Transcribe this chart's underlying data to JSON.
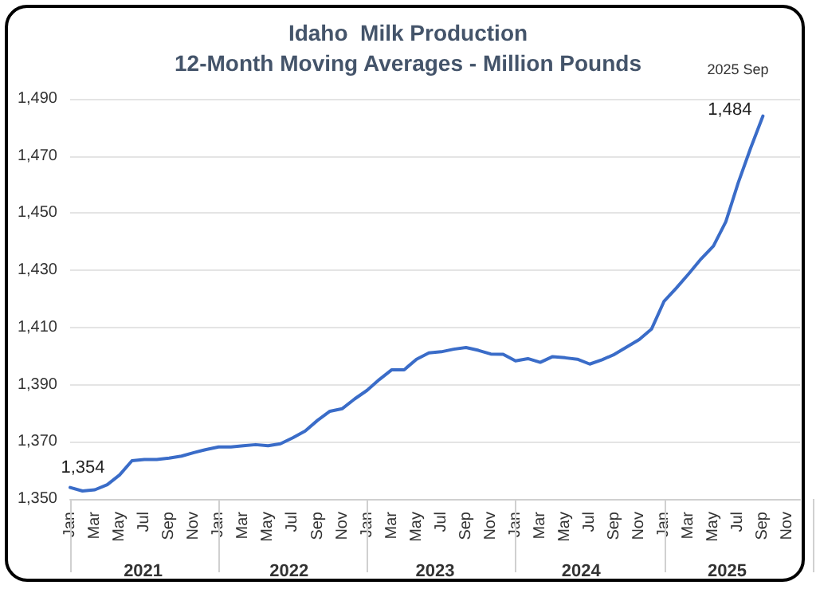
{
  "chart_data": {
    "type": "line",
    "title": "Idaho  Milk Production\n12-Month Moving Averages - Million Pounds",
    "categories": [
      "Jan",
      null,
      "Mar",
      null,
      "May",
      null,
      "Jul",
      null,
      "Sep",
      null,
      "Nov",
      null,
      "Jan",
      null,
      "Mar",
      null,
      "May",
      null,
      "Jul",
      null,
      "Sep",
      null,
      "Nov",
      null,
      "Jan",
      null,
      "Mar",
      null,
      "May",
      null,
      "Jul",
      null,
      "Sep",
      null,
      "Nov",
      null,
      "Jan",
      null,
      "Mar",
      null,
      "May",
      null,
      "Jul",
      null,
      "Sep",
      null,
      "Nov",
      null,
      "Jan",
      null,
      "Mar",
      null,
      "May",
      null,
      "Jul",
      null,
      "Sep",
      null,
      "Nov",
      null
    ],
    "series": [
      {
        "color": "#3a6cc8",
        "values": [
          1354,
          1352.8,
          1353.2,
          1355,
          1358.4,
          1363.4,
          1363.8,
          1363.8,
          1364.3,
          1365,
          1366.2,
          1367.3,
          1368.2,
          1368.2,
          1368.6,
          1369,
          1368.6,
          1369.3,
          1371.4,
          1373.8,
          1377.5,
          1380.7,
          1381.6,
          1385,
          1388,
          1391.8,
          1395.2,
          1395.2,
          1398.9,
          1401.1,
          1401.5,
          1402.4,
          1403,
          1402,
          1400.7,
          1400.6,
          1398.3,
          1399.1,
          1397.8,
          1399.8,
          1399.4,
          1398.9,
          1397.2,
          1398.7,
          1400.6,
          1403.2,
          1405.8,
          1409.5,
          1419.1,
          1423.8,
          1428.8,
          1434,
          1438.5,
          1447,
          1460.6,
          1472.7,
          1484,
          null,
          null,
          null
        ],
        "value_labels": [
          "1,354",
          null,
          null,
          null,
          null,
          null,
          null,
          null,
          null,
          null,
          null,
          null,
          null,
          null,
          null,
          null,
          null,
          null,
          null,
          null,
          null,
          null,
          null,
          null,
          null,
          null,
          null,
          null,
          null,
          null,
          null,
          null,
          null,
          null,
          null,
          null,
          null,
          null,
          null,
          null,
          null,
          null,
          null,
          null,
          null,
          null,
          null,
          null,
          null,
          null,
          null,
          null,
          null,
          null,
          null,
          null,
          "1,484",
          null,
          null,
          null
        ]
      }
    ],
    "ylim": [
      1350,
      1490
    ],
    "yticks": [
      {
        "value": 1350,
        "label": "1,350"
      },
      {
        "value": 1370,
        "label": "1,370"
      },
      {
        "value": 1390,
        "label": "1,390"
      },
      {
        "value": 1410,
        "label": "1,410"
      },
      {
        "value": 1430,
        "label": "1,430"
      },
      {
        "value": 1450,
        "label": "1,450"
      },
      {
        "value": 1470,
        "label": "1,470"
      },
      {
        "value": 1490,
        "label": "1,490"
      }
    ],
    "grid": "y",
    "marker": "none",
    "line_style": "solid",
    "annotations": [
      "2025 Sep",
      "2021",
      "2022",
      "2023",
      "2024",
      "2025"
    ]
  }
}
